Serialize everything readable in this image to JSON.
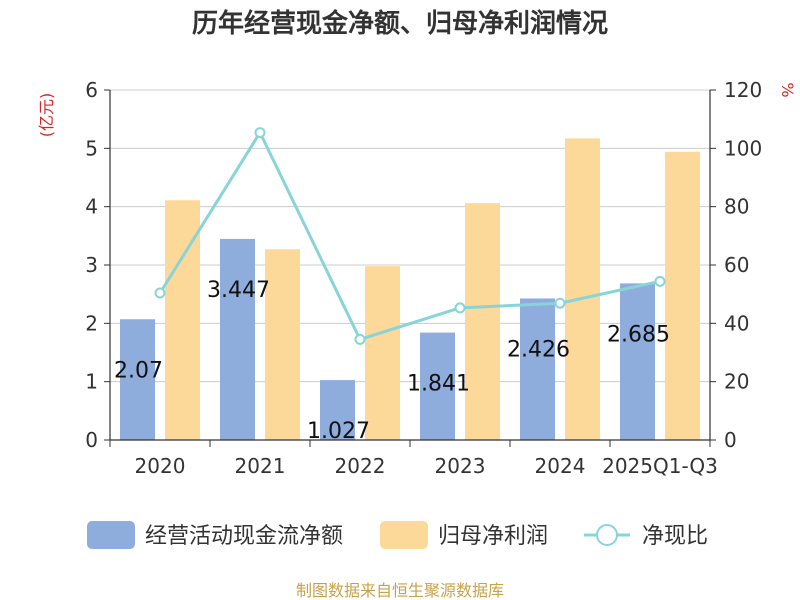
{
  "chart_data": {
    "type": "bar",
    "title": "历年经营现金净额、归母净利润情况",
    "categories": [
      "2020",
      "2021",
      "2022",
      "2023",
      "2024",
      "2025Q1-Q3"
    ],
    "series": [
      {
        "name": "经营活动现金流净额",
        "type": "bar",
        "axis": "left",
        "color": "#8eacdc",
        "values": [
          2.07,
          3.447,
          1.027,
          1.841,
          2.426,
          2.685
        ],
        "data_labels": [
          "2.07",
          "3.447",
          "1.027",
          "1.841",
          "2.426",
          "2.685"
        ]
      },
      {
        "name": "归母净利润",
        "type": "bar",
        "axis": "left",
        "color": "#fdd999",
        "values": [
          4.11,
          3.27,
          2.98,
          4.06,
          5.17,
          4.94
        ]
      },
      {
        "name": "净现比",
        "type": "line",
        "axis": "right",
        "color": "#88d4d8",
        "values": [
          50.4,
          105.4,
          34.5,
          45.3,
          46.9,
          54.4
        ]
      }
    ],
    "y_left": {
      "unit": "(亿元)",
      "range": [
        0,
        6
      ],
      "ticks": [
        "0",
        "1",
        "2",
        "3",
        "4",
        "5",
        "6"
      ]
    },
    "y_right": {
      "unit": "%",
      "range": [
        0,
        120
      ],
      "ticks": [
        "0",
        "20",
        "40",
        "60",
        "80",
        "100",
        "120"
      ]
    },
    "grid": true,
    "legend": "bottom"
  },
  "source": "制图数据来自恒生聚源数据库"
}
